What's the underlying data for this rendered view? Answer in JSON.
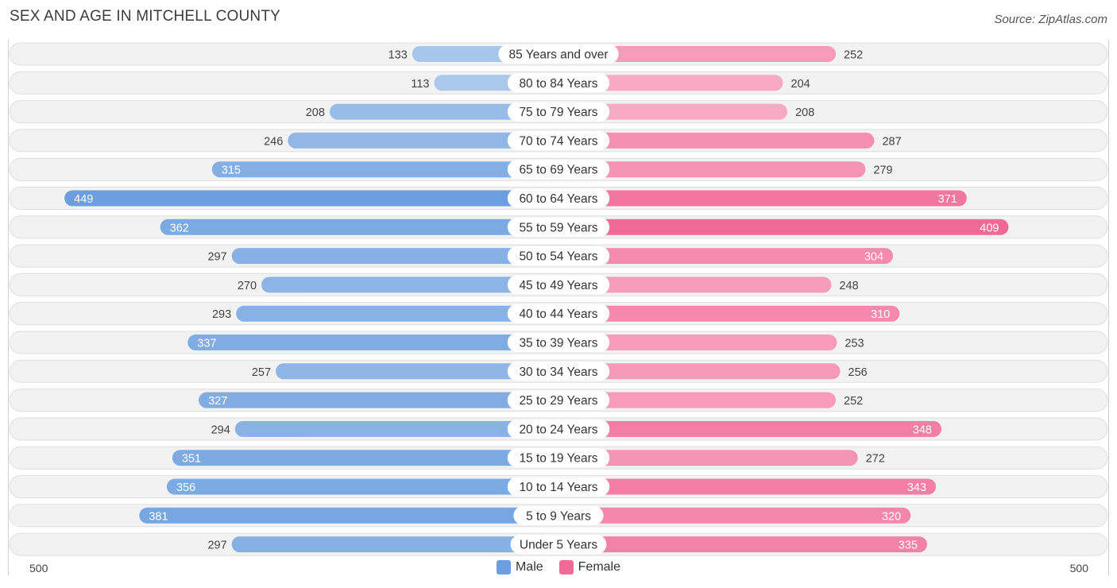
{
  "header": {
    "title": "SEX AND AGE IN MITCHELL COUNTY",
    "source": "Source: ZipAtlas.com"
  },
  "legend": {
    "male_label": "Male",
    "female_label": "Female"
  },
  "axis": {
    "left_label": "500",
    "right_label": "500"
  },
  "colors": {
    "male_dark": "#6a9ede",
    "male_light": "#aac8ec",
    "female_dark": "#f06a98",
    "female_light": "#f8aac4",
    "row_bg": "#f2f2f2",
    "row_border": "#dedede"
  },
  "chart_data": {
    "type": "bar",
    "title": "SEX AND AGE IN MITCHELL COUNTY",
    "orientation": "horizontal-diverging",
    "categories": [
      "85 Years and over",
      "80 to 84 Years",
      "75 to 79 Years",
      "70 to 74 Years",
      "65 to 69 Years",
      "60 to 64 Years",
      "55 to 59 Years",
      "50 to 54 Years",
      "45 to 49 Years",
      "40 to 44 Years",
      "35 to 39 Years",
      "30 to 34 Years",
      "25 to 29 Years",
      "20 to 24 Years",
      "15 to 19 Years",
      "10 to 14 Years",
      "5 to 9 Years",
      "Under 5 Years"
    ],
    "series": [
      {
        "name": "Male",
        "values": [
          133,
          113,
          208,
          246,
          315,
          449,
          362,
          297,
          270,
          293,
          337,
          257,
          327,
          294,
          351,
          356,
          381,
          297
        ]
      },
      {
        "name": "Female",
        "values": [
          252,
          204,
          208,
          287,
          279,
          371,
          409,
          304,
          248,
          310,
          253,
          256,
          252,
          348,
          272,
          343,
          320,
          335
        ]
      }
    ],
    "xlim": [
      -500,
      500
    ],
    "legend_position": "bottom-center"
  }
}
